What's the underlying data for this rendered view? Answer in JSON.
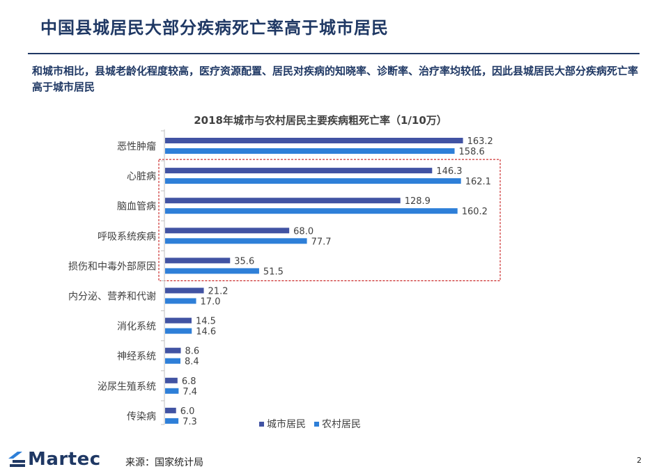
{
  "header": {
    "title": "中国县城居民大部分疾病死亡率高于城市居民",
    "subtitle": "和城市相比，县城老龄化程度较高，医疗资源配置、居民对疾病的知晓率、诊断率、治疗率均较低，因此县城居民大部分疾病死亡率高于城市居民"
  },
  "chart_data": {
    "type": "bar",
    "orientation": "horizontal",
    "title": "2018年城市与农村居民主要疾病粗死亡率（1/10万）",
    "categories": [
      "恶性肿瘤",
      "心脏病",
      "脑血管病",
      "呼吸系统疾病",
      "损伤和中毒外部原因",
      "内分泌、营养和代谢",
      "消化系统",
      "神经系统",
      "泌尿生殖系统",
      "传染病"
    ],
    "series": [
      {
        "name": "城市居民",
        "color": "#4153a3",
        "values": [
          163.2,
          146.3,
          128.9,
          68.0,
          35.6,
          21.2,
          14.5,
          8.6,
          6.8,
          6.0
        ]
      },
      {
        "name": "农村居民",
        "color": "#2e7fd8",
        "values": [
          158.6,
          162.1,
          160.2,
          77.7,
          51.5,
          17.0,
          14.6,
          8.4,
          7.4,
          7.3
        ]
      }
    ],
    "highlighted_categories": [
      "心脏病",
      "脑血管病",
      "呼吸系统疾病",
      "损伤和中毒外部原因"
    ],
    "legend": "bottom",
    "grid": false,
    "xlim": [
      0,
      170
    ]
  },
  "footer": {
    "logo_text": "Martec",
    "source": "来源：国家统计局",
    "page_number": "2"
  }
}
